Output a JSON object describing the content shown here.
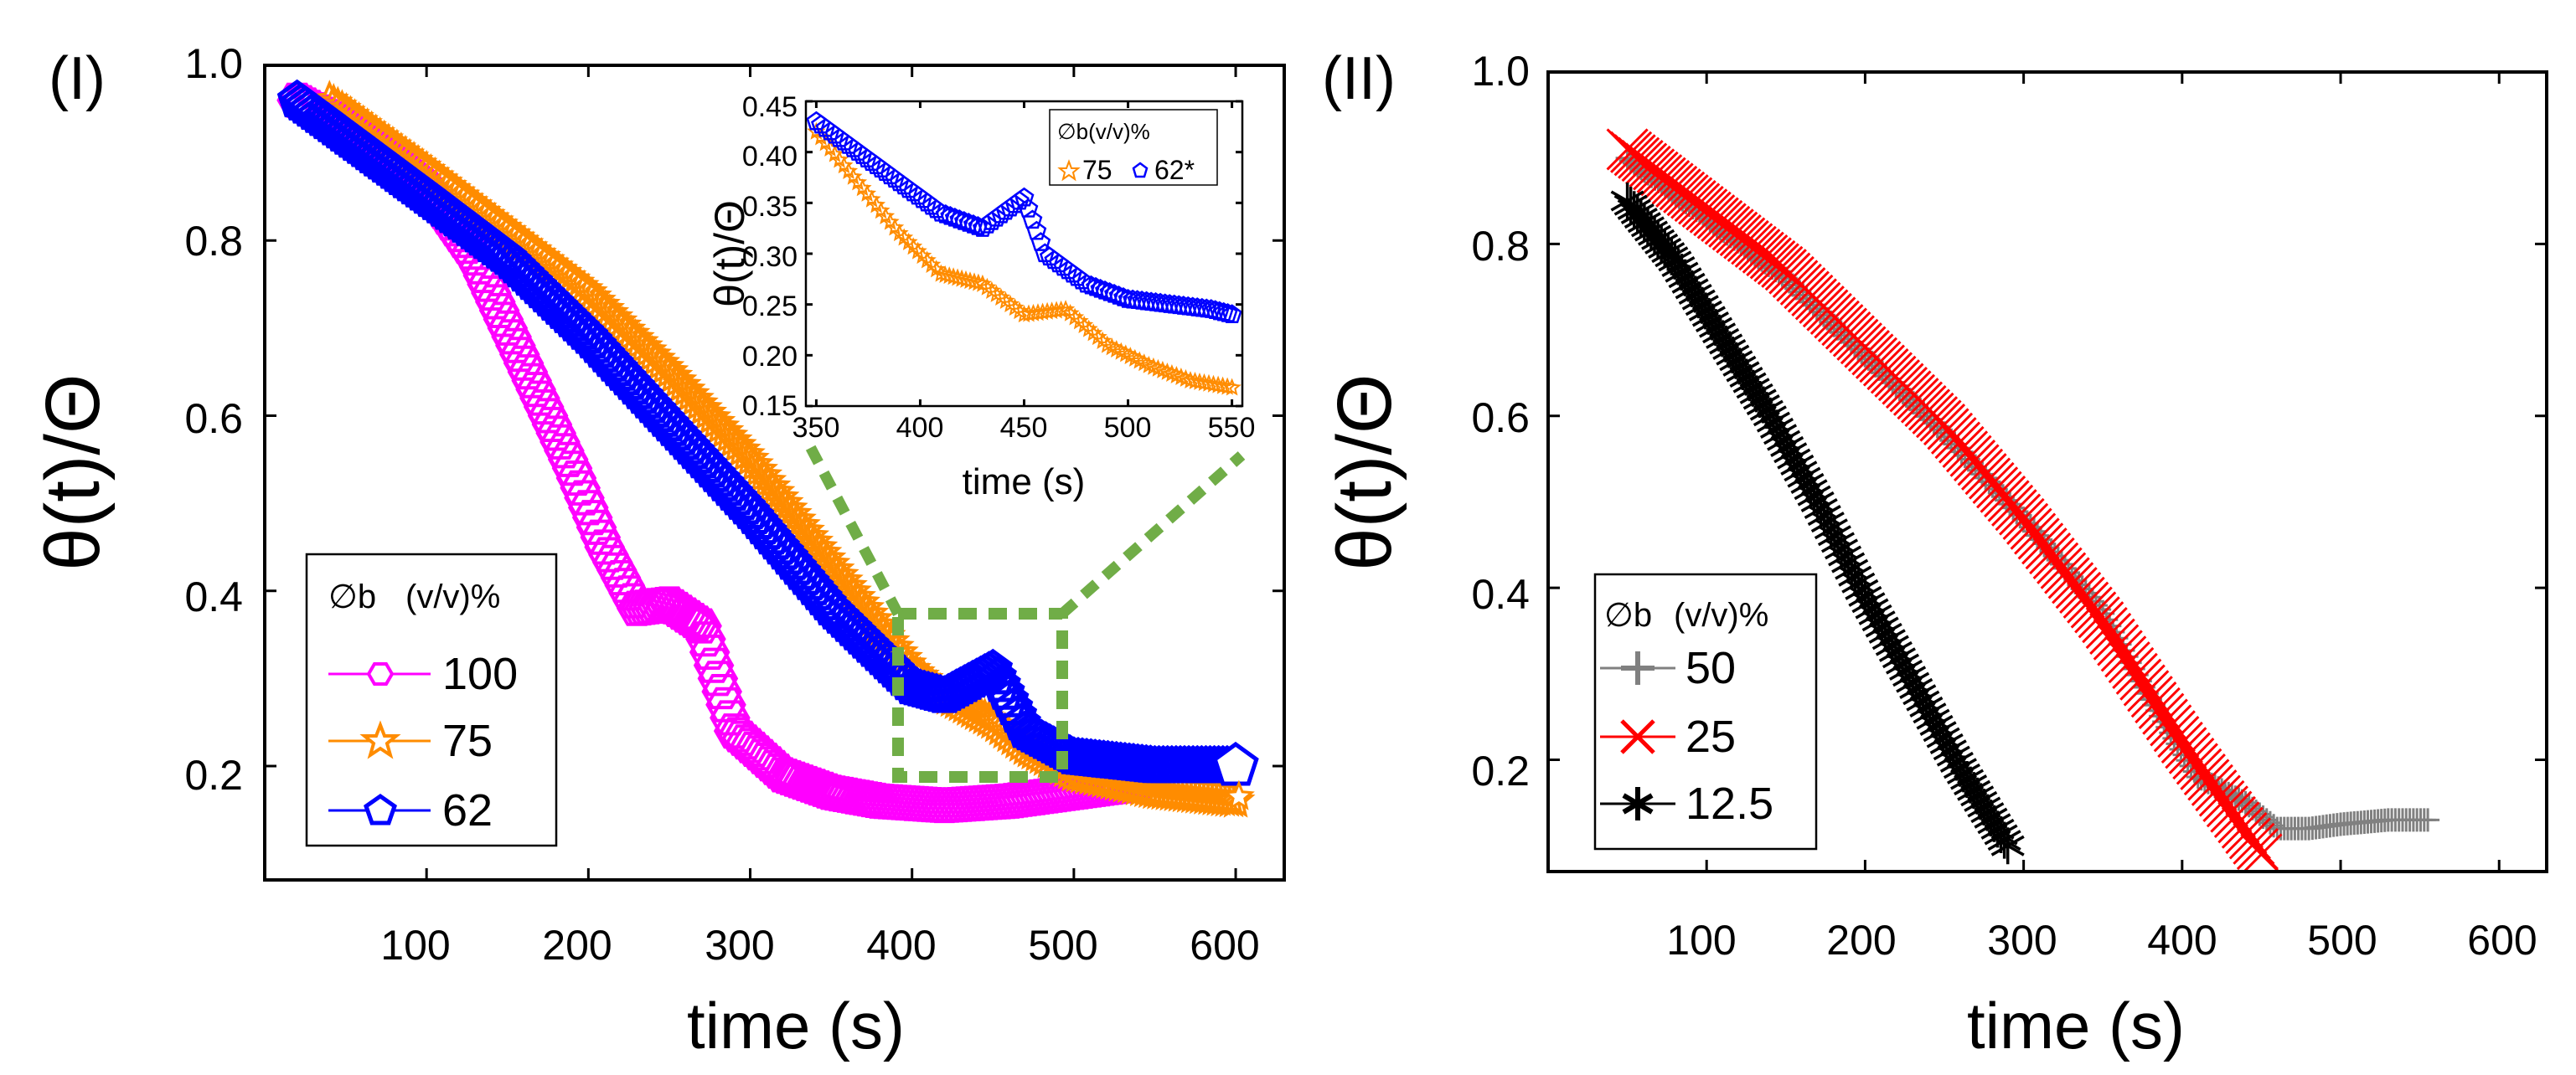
{
  "chart_data": [
    {
      "type": "scatter",
      "panel_label": "(I)",
      "xlabel": "time (s)",
      "ylabel": "θ(t)/Θ",
      "xlim": [
        0,
        630
      ],
      "ylim": [
        0.07,
        1.0
      ],
      "xticks": [
        "100",
        "200",
        "300",
        "400",
        "500",
        "600"
      ],
      "yticks": [
        "0.2",
        "0.4",
        "0.6",
        "0.8",
        "1.0"
      ],
      "legend": {
        "title": "∅b",
        "unit": "(v/v)%",
        "position": "bottom-left"
      },
      "series": [
        {
          "name": "100",
          "color": "#ff00ff",
          "marker": "hexagon",
          "x": [
            20,
            60,
            100,
            130,
            160,
            190,
            210,
            230,
            250,
            270,
            290,
            320,
            350,
            380,
            420,
            460,
            500,
            540
          ],
          "y": [
            0.96,
            0.92,
            0.86,
            0.78,
            0.66,
            0.54,
            0.45,
            0.38,
            0.385,
            0.36,
            0.24,
            0.19,
            0.17,
            0.16,
            0.155,
            0.16,
            0.17,
            0.18
          ]
        },
        {
          "name": "75",
          "color": "#ff8c00",
          "marker": "star",
          "x": [
            40,
            100,
            150,
            200,
            250,
            300,
            350,
            400,
            420,
            450,
            470,
            500,
            550,
            600
          ],
          "y": [
            0.96,
            0.88,
            0.81,
            0.74,
            0.65,
            0.55,
            0.43,
            0.31,
            0.28,
            0.25,
            0.22,
            0.19,
            0.17,
            0.16
          ]
        },
        {
          "name": "62",
          "color": "#0000ff",
          "marker": "pentagon",
          "x": [
            20,
            100,
            150,
            200,
            250,
            300,
            350,
            400,
            420,
            450,
            470,
            500,
            550,
            600
          ],
          "y": [
            0.96,
            0.85,
            0.78,
            0.69,
            0.59,
            0.49,
            0.38,
            0.29,
            0.28,
            0.31,
            0.24,
            0.21,
            0.2,
            0.2
          ]
        }
      ],
      "highlight_box": {
        "x": [
          395,
          490
        ],
        "y": [
          0.2,
          0.4
        ]
      },
      "inset": {
        "xlabel": "time (s)",
        "ylabel": "θ(t)/Θ",
        "xlim": [
          345,
          555
        ],
        "ylim": [
          0.15,
          0.45
        ],
        "xticks": [
          "350",
          "400",
          "450",
          "500",
          "550"
        ],
        "yticks": [
          "0.15",
          "0.20",
          "0.25",
          "0.30",
          "0.35",
          "0.40",
          "0.45"
        ],
        "legend_title": "∅b(v/v)%",
        "series": [
          {
            "name": "75",
            "color": "#ff8c00",
            "marker": "star",
            "x": [
              350,
              370,
              390,
              410,
              420,
              430,
              450,
              470,
              490,
              510,
              530,
              550
            ],
            "y": [
              0.42,
              0.37,
              0.32,
              0.28,
              0.275,
              0.27,
              0.24,
              0.245,
              0.21,
              0.19,
              0.175,
              0.168
            ]
          },
          {
            "name": "62*",
            "color": "#0000ff",
            "marker": "pentagon",
            "x": [
              350,
              370,
              390,
              410,
              430,
              450,
              460,
              480,
              500,
              520,
              540,
              550
            ],
            "y": [
              0.43,
              0.4,
              0.37,
              0.34,
              0.325,
              0.355,
              0.3,
              0.27,
              0.255,
              0.25,
              0.245,
              0.24
            ]
          }
        ]
      }
    },
    {
      "type": "scatter",
      "panel_label": "(II)",
      "xlabel": "time (s)",
      "ylabel": "θ(t)/Θ",
      "xlim": [
        0,
        630
      ],
      "ylim": [
        0.07,
        1.0
      ],
      "xticks": [
        "100",
        "200",
        "300",
        "400",
        "500",
        "600"
      ],
      "yticks": [
        "0.2",
        "0.4",
        "0.6",
        "0.8",
        "1.0"
      ],
      "legend": {
        "title": "∅b",
        "unit": "(v/v)%",
        "position": "bottom-left"
      },
      "series": [
        {
          "name": "50",
          "color": "#808080",
          "marker": "plus",
          "x": [
            50,
            100,
            150,
            200,
            250,
            300,
            350,
            380,
            410,
            440,
            460,
            480,
            500,
            530,
            555
          ],
          "y": [
            0.9,
            0.83,
            0.76,
            0.67,
            0.58,
            0.48,
            0.37,
            0.27,
            0.18,
            0.15,
            0.12,
            0.12,
            0.125,
            0.13,
            0.13
          ]
        },
        {
          "name": "25",
          "color": "#ff0000",
          "marker": "x",
          "x": [
            50,
            100,
            150,
            200,
            250,
            300,
            350,
            400,
            450
          ],
          "y": [
            0.91,
            0.84,
            0.77,
            0.68,
            0.59,
            0.48,
            0.36,
            0.22,
            0.09
          ]
        },
        {
          "name": "12.5",
          "color": "#000000",
          "marker": "asterisk",
          "x": [
            50,
            80,
            110,
            140,
            170,
            200,
            230,
            260,
            290
          ],
          "y": [
            0.85,
            0.78,
            0.69,
            0.6,
            0.5,
            0.39,
            0.29,
            0.19,
            0.1
          ]
        }
      ]
    }
  ]
}
